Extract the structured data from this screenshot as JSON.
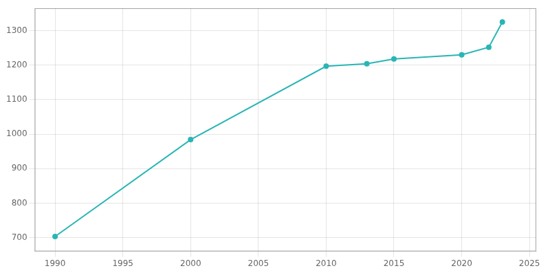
{
  "chart_data": {
    "type": "line",
    "x": [
      1990,
      2000,
      2010,
      2013,
      2015,
      2020,
      2022,
      2023
    ],
    "values": [
      703,
      984,
      1197,
      1204,
      1218,
      1230,
      1252,
      1325
    ],
    "color": "#2ab5b5",
    "marker": "circle",
    "xlim": [
      1988.5,
      2025.5
    ],
    "ylim": [
      660,
      1365
    ],
    "xticks": [
      1990,
      1995,
      2000,
      2005,
      2010,
      2015,
      2020,
      2025
    ],
    "yticks": [
      700,
      800,
      900,
      1000,
      1100,
      1200,
      1300
    ],
    "grid": true
  }
}
